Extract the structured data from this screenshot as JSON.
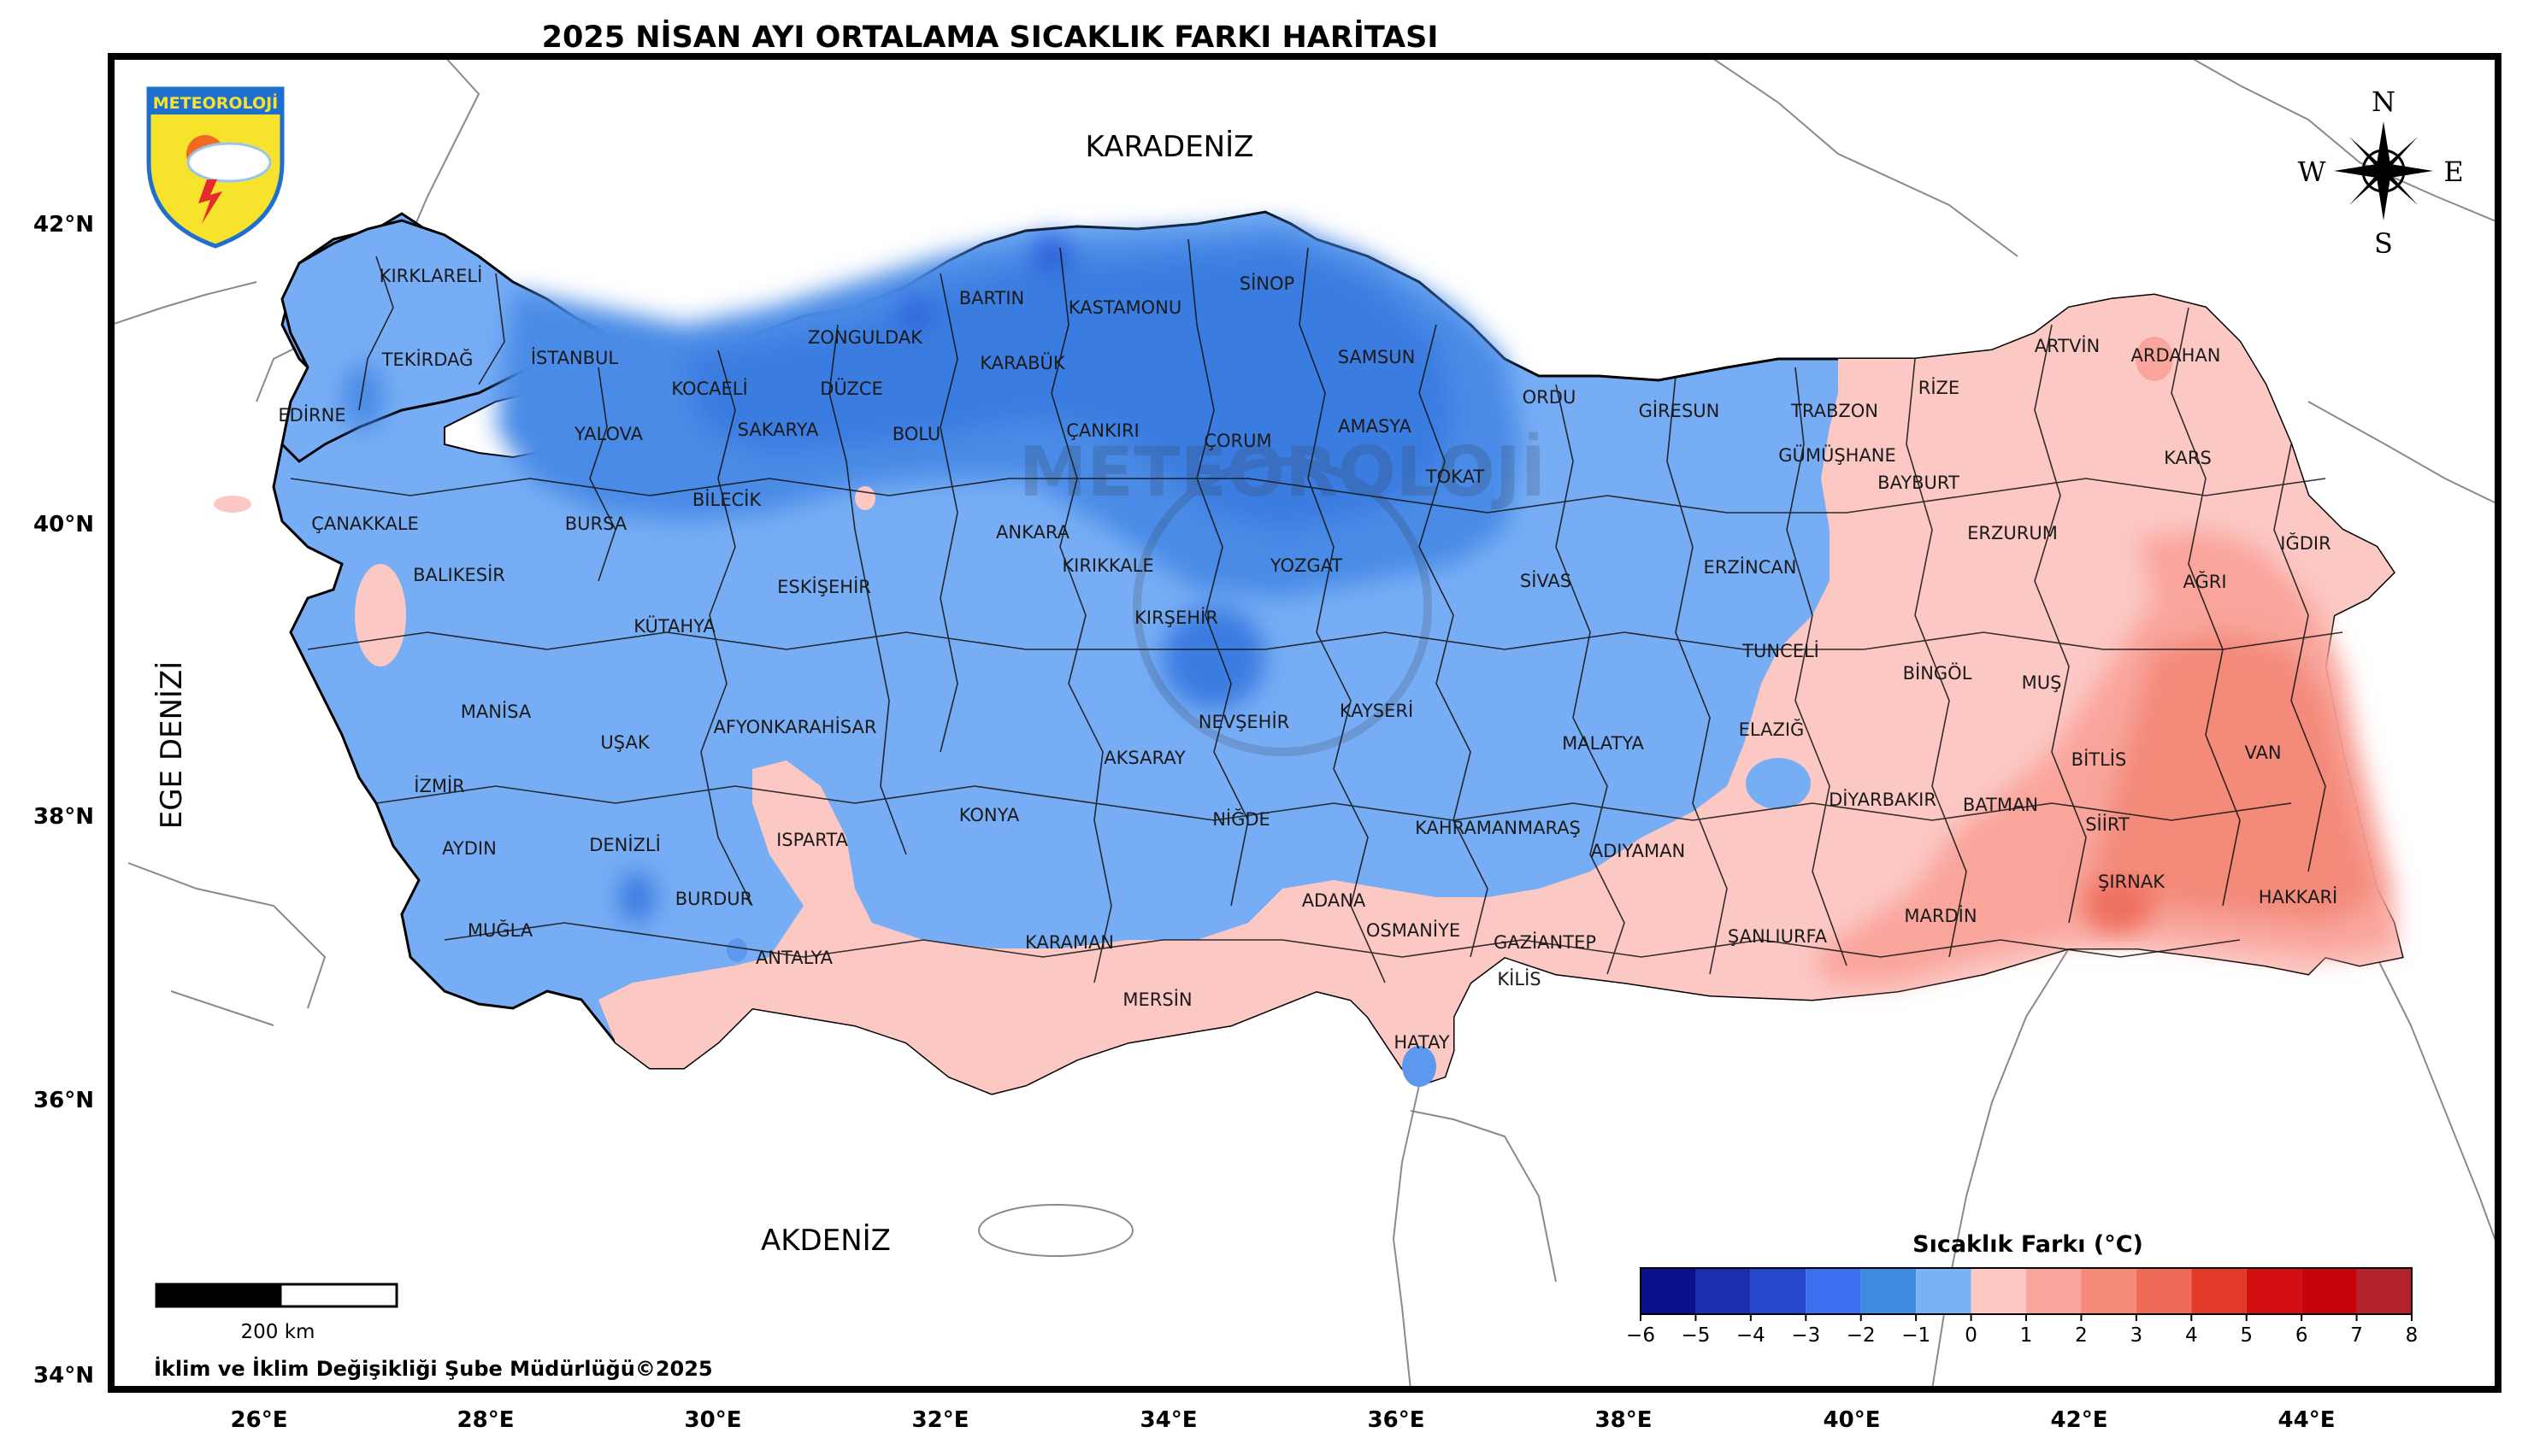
{
  "title": "2025 NİSAN AYI ORTALAMA SICAKLIK FARKI HARİTASI",
  "logo_text": "METEOROLOJİ",
  "seas": {
    "black_sea": "KARADENİZ",
    "aegean": "EGE DENİZİ",
    "mediterranean": "AKDENİZ"
  },
  "compass": {
    "n": "N",
    "s": "S",
    "e": "E",
    "w": "W"
  },
  "lat_labels": [
    "42°N",
    "40°N",
    "38°N",
    "36°N",
    "34°N"
  ],
  "lon_labels": [
    "26°E",
    "28°E",
    "30°E",
    "32°E",
    "34°E",
    "36°E",
    "38°E",
    "40°E",
    "42°E",
    "44°E"
  ],
  "scale_bar": {
    "label": "200 km"
  },
  "credit": "İklim ve İklim Değişikliği Şube Müdürlüğü©2025",
  "legend": {
    "title": "Sıcaklık Farkı (°C)",
    "ticks": [
      "−6",
      "−5",
      "−4",
      "−3",
      "−2",
      "−1",
      "0",
      "1",
      "2",
      "3",
      "4",
      "5",
      "6",
      "7",
      "8"
    ],
    "colors": [
      "#0a0f8c",
      "#1a2fb0",
      "#2447cc",
      "#3a6ff0",
      "#3d8ae3",
      "#79b2f5",
      "#fcc8c4",
      "#f9a59c",
      "#f58a78",
      "#ef6a56",
      "#e2392a",
      "#d40d10",
      "#c5040c",
      "#b3242a"
    ]
  },
  "colors": {
    "cold_strong": "#3a7ce0",
    "cold_medium": "#5c98ee",
    "cold_light": "#77adf5",
    "warm_light": "#fcc8c4",
    "warm_medium": "#f9a59c",
    "warm_strong": "#f38a7a"
  },
  "provinces": [
    "KIRKLARELİ",
    "TEKİRDAĞ",
    "EDİRNE",
    "İSTANBUL",
    "KOCAELİ",
    "YALOVA",
    "ÇANAKKALE",
    "BURSA",
    "BİLECİK",
    "SAKARYA",
    "DÜZCE",
    "ZONGULDAK",
    "BARTIN",
    "KARABÜK",
    "KASTAMONU",
    "SİNOP",
    "SAMSUN",
    "BOLU",
    "ÇANKIRI",
    "ÇORUM",
    "AMASYA",
    "TOKAT",
    "ORDU",
    "GİRESUN",
    "TRABZON",
    "RİZE",
    "ARTVİN",
    "ARDAHAN",
    "KARS",
    "IĞDIR",
    "GÜMÜŞHANE",
    "BAYBURT",
    "ERZURUM",
    "AĞRI",
    "ERZİNCAN",
    "SİVAS",
    "YOZGAT",
    "KIRIKKALE",
    "ANKARA",
    "ESKİŞEHİR",
    "KÜTAHYA",
    "BALIKESİR",
    "MANİSA",
    "UŞAK",
    "İZMİR",
    "AYDIN",
    "DENİZLİ",
    "MUĞLA",
    "BURDUR",
    "ISPARTA",
    "AFYONKARAHİSAR",
    "KONYA",
    "KARAMAN",
    "ANTALYA",
    "MERSİN",
    "NİĞDE",
    "AKSARAY",
    "NEVŞEHİR",
    "KIRŞEHİR",
    "KAYSERİ",
    "MALATYA",
    "KAHRAMANMARAŞ",
    "ADANA",
    "OSMANİYE",
    "HATAY",
    "GAZİANTEP",
    "KİLİS",
    "ADIYAMAN",
    "ŞANLIURFA",
    "DİYARBAKIR",
    "MARDİN",
    "BATMAN",
    "SİİRT",
    "ŞIRNAK",
    "HAKKARİ",
    "VAN",
    "BİTLİS",
    "MUŞ",
    "BİNGÖL",
    "TUNCELİ",
    "ELAZIĞ"
  ]
}
